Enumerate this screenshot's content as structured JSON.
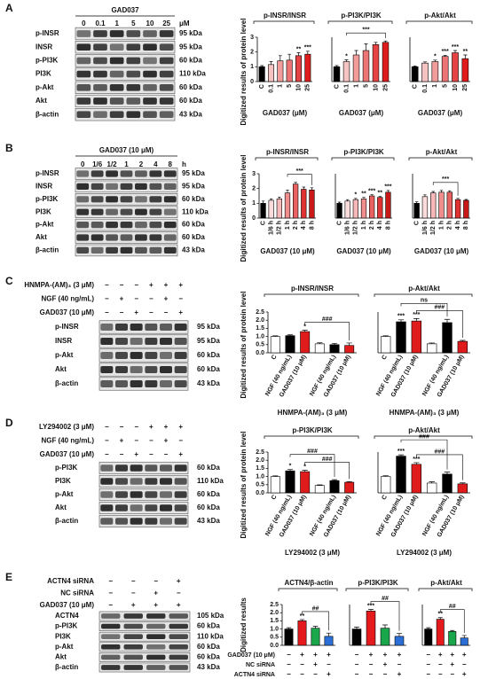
{
  "panels": [
    {
      "letter": "A",
      "header": "GAD037",
      "columns": [
        "0",
        "0.1",
        "1",
        "5",
        "10",
        "25"
      ],
      "unit": "μM",
      "rows": [
        {
          "label": "p-INSR",
          "kda": "95 kDa"
        },
        {
          "label": "INSR",
          "kda": "95 kDa"
        },
        {
          "label": "p-PI3K",
          "kda": "60 kDa"
        },
        {
          "label": "PI3K",
          "kda": "110 kDa"
        },
        {
          "label": "p-Akt",
          "kda": "60 kDa"
        },
        {
          "label": "Akt",
          "kda": "60 kDa"
        },
        {
          "label": "β-actin",
          "kda": "43 kDa"
        }
      ]
    },
    {
      "letter": "B",
      "header": "GAD037 (10 μM)",
      "columns": [
        "0",
        "1/6",
        "1/2",
        "1",
        "2",
        "4",
        "8"
      ],
      "unit": "h",
      "rows": [
        {
          "label": "p-INSR",
          "kda": "95 kDa"
        },
        {
          "label": "INSR",
          "kda": "95 kDa"
        },
        {
          "label": "p-PI3K",
          "kda": "60 kDa"
        },
        {
          "label": "PI3K",
          "kda": "110 kDa"
        },
        {
          "label": "p-Akt",
          "kda": "60 kDa"
        },
        {
          "label": "Akt",
          "kda": "60 kDa"
        },
        {
          "label": "β-actin",
          "kda": "43 kDa"
        }
      ]
    },
    {
      "letter": "C",
      "treatments": [
        {
          "name": "HNMPA-(AM)₃ (3 μM)",
          "signs": [
            "−",
            "−",
            "−",
            "+",
            "+",
            "+"
          ]
        },
        {
          "name": "NGF (40 ng/mL)",
          "signs": [
            "−",
            "+",
            "−",
            "−",
            "+",
            "−"
          ]
        },
        {
          "name": "GAD037 (10 μM)",
          "signs": [
            "−",
            "−",
            "+",
            "−",
            "−",
            "+"
          ]
        }
      ],
      "rows": [
        {
          "label": "p-INSR",
          "kda": "95 kDa"
        },
        {
          "label": "INSR",
          "kda": "95 kDa"
        },
        {
          "label": "p-Akt",
          "kda": "60 kDa"
        },
        {
          "label": "Akt",
          "kda": "60 kDa"
        },
        {
          "label": "β-actin",
          "kda": "43 kDa"
        }
      ]
    },
    {
      "letter": "D",
      "treatments": [
        {
          "name": "LY294002 (3 μM)",
          "signs": [
            "−",
            "−",
            "−",
            "+",
            "+",
            "+"
          ]
        },
        {
          "name": "NGF (40 ng/mL)",
          "signs": [
            "−",
            "+",
            "−",
            "−",
            "+",
            "−"
          ]
        },
        {
          "name": "GAD037 (10 μM)",
          "signs": [
            "−",
            "−",
            "+",
            "−",
            "−",
            "+"
          ]
        }
      ],
      "rows": [
        {
          "label": "p-PI3K",
          "kda": "60 kDa"
        },
        {
          "label": "PI3K",
          "kda": "110 kDa"
        },
        {
          "label": "p-Akt",
          "kda": "60 kDa"
        },
        {
          "label": "Akt",
          "kda": "60 kDa"
        },
        {
          "label": "β-actin",
          "kda": "43 kDa"
        }
      ]
    },
    {
      "letter": "E",
      "treatments": [
        {
          "name": "ACTN4 siRNA",
          "signs": [
            "−",
            "−",
            "−",
            "+"
          ]
        },
        {
          "name": "NC siRNA",
          "signs": [
            "−",
            "−",
            "+",
            "−"
          ]
        },
        {
          "name": "GAD037 (10 μM)",
          "signs": [
            "−",
            "+",
            "+",
            "+"
          ]
        }
      ],
      "rows": [
        {
          "label": "ACTN4",
          "kda": "105 kDa"
        },
        {
          "label": "p-PI3K",
          "kda": "60 kDa"
        },
        {
          "label": "PI3K",
          "kda": "110 kDa"
        },
        {
          "label": "p-Akt",
          "kda": "60 kDa"
        },
        {
          "label": "Akt",
          "kda": "60 kDa"
        },
        {
          "label": "β-actin",
          "kda": "43 kDa"
        }
      ]
    }
  ],
  "e_conditions": [
    {
      "name": "GAD037 (10 μM)",
      "signs": [
        "−",
        "+",
        "+",
        "+"
      ]
    },
    {
      "name": "NC siRNA",
      "signs": [
        "−",
        "−",
        "+",
        "−"
      ]
    },
    {
      "name": "ACTN4 siRNA",
      "signs": [
        "−",
        "−",
        "−",
        "+"
      ]
    }
  ],
  "chart_data": [
    {
      "type": "bar",
      "title": "p-INSR/INSR",
      "ylabel": "Digitized results of protein level",
      "xlabel": "GAD037 (μM)",
      "categories": [
        "C",
        "0.1",
        "1",
        "5",
        "10",
        "25"
      ],
      "values": [
        1.0,
        1.15,
        1.4,
        1.45,
        1.75,
        1.85
      ],
      "errors": [
        0.08,
        0.2,
        0.35,
        0.4,
        0.2,
        0.2
      ],
      "colors": [
        "#000000",
        "#f6c3c3",
        "#f29c9c",
        "#ec7474",
        "#e64444",
        "#e01b1b"
      ],
      "annotations": [
        null,
        null,
        null,
        null,
        "**",
        "***"
      ],
      "ylim": [
        0,
        3
      ],
      "yticks": [
        0,
        1,
        2,
        3
      ]
    },
    {
      "type": "bar",
      "title": "p-PI3K/PI3K",
      "xlabel": "GAD037 (μM)",
      "categories": [
        "C",
        "0.1",
        "1",
        "5",
        "10",
        "25"
      ],
      "values": [
        1.0,
        1.35,
        1.8,
        2.1,
        2.5,
        2.65
      ],
      "errors": [
        0.08,
        0.12,
        0.3,
        0.45,
        0.15,
        0.1
      ],
      "colors": [
        "#000000",
        "#f6c3c3",
        "#f29c9c",
        "#ec7474",
        "#e64444",
        "#e01b1b"
      ],
      "annotations": [
        null,
        "*",
        null,
        null,
        null,
        null
      ],
      "brackets": [
        {
          "from": 1,
          "to": 5,
          "label": "***"
        }
      ],
      "ylim": [
        0,
        3
      ]
    },
    {
      "type": "bar",
      "title": "p-Akt/Akt",
      "xlabel": "GAD037 (μM)",
      "categories": [
        "C",
        "0.1",
        "1",
        "5",
        "10",
        "25"
      ],
      "values": [
        1.0,
        1.25,
        1.35,
        1.7,
        1.95,
        1.55
      ],
      "errors": [
        0.06,
        0.08,
        0.1,
        0.08,
        0.15,
        0.25
      ],
      "colors": [
        "#000000",
        "#f6c3c3",
        "#f29c9c",
        "#ec7474",
        "#e64444",
        "#e01b1b"
      ],
      "annotations": [
        null,
        null,
        "*",
        "***",
        "***",
        "**"
      ],
      "ylim": [
        0,
        3
      ]
    },
    {
      "type": "bar",
      "title": "p-INSR/INSR",
      "ylabel": "Digitized results of protein level",
      "xlabel": "GAD037 (10 μM)",
      "categories": [
        "C",
        "1/6 h",
        "1/2 h",
        "1 h",
        "2 h",
        "4 h",
        "8 h"
      ],
      "values": [
        1.0,
        1.2,
        1.3,
        1.7,
        2.3,
        1.95,
        1.9
      ],
      "errors": [
        0.15,
        0.1,
        0.12,
        0.2,
        0.12,
        0.15,
        0.15
      ],
      "colors": [
        "#000000",
        "#fbdcdc",
        "#f6b8b8",
        "#f08e8e",
        "#e96161",
        "#e03232",
        "#c81818"
      ],
      "annotations": [
        null,
        null,
        null,
        null,
        null,
        null,
        null
      ],
      "brackets": [
        {
          "from": 3,
          "to": 6,
          "label": "***"
        }
      ],
      "ylim": [
        0,
        3
      ],
      "yticks": [
        0,
        1,
        2,
        3
      ]
    },
    {
      "type": "bar",
      "title": "p-PI3K/PI3K",
      "xlabel": "GAD037 (10 μM)",
      "categories": [
        "C",
        "1/6 h",
        "1/2 h",
        "1 h",
        "2 h",
        "4 h",
        "8 h"
      ],
      "values": [
        1.0,
        1.15,
        1.25,
        1.3,
        1.5,
        1.4,
        1.75
      ],
      "errors": [
        0.08,
        0.1,
        0.08,
        0.1,
        0.08,
        0.06,
        0.12
      ],
      "colors": [
        "#000000",
        "#fbdcdc",
        "#f6b8b8",
        "#f08e8e",
        "#e96161",
        "#e03232",
        "#c81818"
      ],
      "annotations": [
        null,
        null,
        "*",
        "**",
        "***",
        "**",
        "***"
      ],
      "ylim": [
        0,
        3
      ]
    },
    {
      "type": "bar",
      "title": "p-Akt/Akt",
      "xlabel": "GAD037 (10 μM)",
      "categories": [
        "C",
        "1/6 h",
        "1/2 h",
        "1 h",
        "2 h",
        "4 h",
        "8 h"
      ],
      "values": [
        1.0,
        1.45,
        1.7,
        1.75,
        1.75,
        1.25,
        1.2
      ],
      "errors": [
        0.1,
        0.12,
        0.1,
        0.12,
        0.1,
        0.08,
        0.06
      ],
      "colors": [
        "#000000",
        "#fbdcdc",
        "#f6b8b8",
        "#f08e8e",
        "#e96161",
        "#e03232",
        "#c81818"
      ],
      "annotations": [
        null,
        null,
        null,
        null,
        null,
        null,
        null
      ],
      "brackets": [
        {
          "from": 2,
          "to": 5,
          "label": "***"
        }
      ],
      "ylim": [
        0,
        3
      ]
    },
    {
      "type": "bar",
      "title": "p-INSR/INSR",
      "ylabel": "Digitized results of protein level",
      "xlabel": "HNMPA-(AM)₃ (3 μM)",
      "categories": [
        "C",
        "NGF (40 ng/mL)",
        "GAD037 (10 μM)",
        null,
        "NGF (40 ng/mL)",
        "GAD037 (10 μM)"
      ],
      "values": [
        1.0,
        1.05,
        1.3,
        0.55,
        0.5,
        0.45
      ],
      "errors": [
        0.04,
        0.05,
        0.08,
        0.06,
        0.08,
        0.15
      ],
      "colors": [
        "#ffffff",
        "#000000",
        "#e01b1b",
        "#ffffff",
        "#000000",
        "#e01b1b"
      ],
      "annotations": [
        null,
        null,
        "*",
        null,
        null,
        null
      ],
      "brackets": [
        {
          "from": 2,
          "to": 5,
          "label": "###"
        }
      ],
      "ylim": [
        0,
        2.5
      ],
      "yticks": [
        {
          "value": 0,
          "label": "0.0"
        },
        {
          "value": 0.5,
          "label": "0.5"
        },
        {
          "value": 1,
          "label": "1.0"
        },
        {
          "value": 1.5,
          "label": "1.5"
        },
        {
          "value": 2,
          "label": "2.0"
        },
        {
          "value": 2.5,
          "label": "2.5"
        }
      ]
    },
    {
      "type": "bar",
      "title": "p-Akt/Akt",
      "xlabel": "HNMPA-(AM)₃ (3 μM)",
      "categories": [
        "C",
        "NGF (40 ng/mL)",
        "GAD037 (10 μM)",
        null,
        "NGF (40 ng/mL)",
        "GAD037 (10 μM)"
      ],
      "values": [
        1.0,
        1.9,
        1.95,
        0.55,
        1.85,
        0.7
      ],
      "errors": [
        0.04,
        0.12,
        0.15,
        0.05,
        0.2,
        0.06
      ],
      "colors": [
        "#ffffff",
        "#000000",
        "#e01b1b",
        "#ffffff",
        "#000000",
        "#e01b1b"
      ],
      "annotations": [
        null,
        "***",
        "***",
        null,
        null,
        null
      ],
      "brackets": [
        {
          "from": 2,
          "to": 5,
          "label": "###"
        },
        {
          "from": 1,
          "to": 4,
          "label": "ns"
        }
      ],
      "ylim": [
        0,
        2.5
      ]
    },
    {
      "type": "bar",
      "title": "p-PI3K/PI3K",
      "ylabel": "Digitized results of protein level",
      "xlabel": "LY294002 (3 μM)",
      "categories": [
        "C",
        "NGF (40 ng/mL)",
        "GAD037 (10 μM)",
        null,
        "NGF (40 ng/mL)",
        "GAD037 (10 μM)"
      ],
      "values": [
        1.0,
        1.35,
        1.3,
        0.45,
        0.75,
        0.65
      ],
      "errors": [
        0.04,
        0.08,
        0.08,
        0.04,
        0.06,
        0.04
      ],
      "colors": [
        "#ffffff",
        "#000000",
        "#e01b1b",
        "#ffffff",
        "#000000",
        "#e01b1b"
      ],
      "annotations": [
        null,
        "*",
        "*",
        null,
        null,
        null
      ],
      "brackets": [
        {
          "from": 2,
          "to": 5,
          "label": "###"
        },
        {
          "from": 1,
          "to": 4,
          "label": "###"
        }
      ],
      "ylim": [
        0,
        2.5
      ],
      "yticks": [
        {
          "value": 0,
          "label": "0.0"
        },
        {
          "value": 0.5,
          "label": "0.5"
        },
        {
          "value": 1,
          "label": "1.0"
        },
        {
          "value": 1.5,
          "label": "1.5"
        },
        {
          "value": 2,
          "label": "2.0"
        },
        {
          "value": 2.5,
          "label": "2.5"
        }
      ]
    },
    {
      "type": "bar",
      "title": "p-Akt/Akt",
      "xlabel": "LY294002 (3 μM)",
      "categories": [
        "C",
        "NGF (40 ng/mL)",
        "GAD037 (10 μM)",
        null,
        "NGF (40 ng/mL)",
        "GAD037 (10 μM)"
      ],
      "values": [
        1.0,
        2.25,
        1.75,
        0.6,
        1.15,
        0.55
      ],
      "errors": [
        0.05,
        0.08,
        0.1,
        0.08,
        0.12,
        0.06
      ],
      "colors": [
        "#ffffff",
        "#000000",
        "#e01b1b",
        "#ffffff",
        "#000000",
        "#e01b1b"
      ],
      "annotations": [
        null,
        "***",
        "***",
        null,
        null,
        null
      ],
      "brackets": [
        {
          "from": 2,
          "to": 5,
          "label": "###"
        },
        {
          "from": 1,
          "to": 4,
          "label": "###"
        }
      ],
      "ylim": [
        0,
        2.5
      ]
    },
    {
      "type": "bar",
      "title": "ACTN4/β-actin",
      "ylabel": "Digitized results",
      "values": [
        1.0,
        1.5,
        1.05,
        0.55
      ],
      "errors": [
        0.08,
        0.08,
        0.12,
        0.2
      ],
      "colors": [
        "#000000",
        "#e41a1c",
        "#1aa64a",
        "#2b6fd6"
      ],
      "annotations": [
        null,
        "**",
        null,
        null
      ],
      "brackets": [
        {
          "from": 1,
          "to": 3,
          "label": "##"
        }
      ],
      "ylim": [
        0,
        2.5
      ],
      "yticks": [
        {
          "value": 0,
          "label": "0.0"
        },
        {
          "value": 0.5,
          "label": "0.5"
        },
        {
          "value": 1,
          "label": "1.0"
        },
        {
          "value": 1.5,
          "label": "1.5"
        },
        {
          "value": 2,
          "label": "2.0"
        },
        {
          "value": 2.5,
          "label": "2.5"
        }
      ]
    },
    {
      "type": "bar",
      "title": "p-PI3K/PI3K",
      "values": [
        1.0,
        2.1,
        1.05,
        0.55
      ],
      "errors": [
        0.12,
        0.1,
        0.2,
        0.18
      ],
      "colors": [
        "#000000",
        "#e41a1c",
        "#1aa64a",
        "#2b6fd6"
      ],
      "annotations": [
        null,
        "***",
        null,
        null
      ],
      "brackets": [
        {
          "from": 1,
          "to": 3,
          "label": "##"
        }
      ],
      "ylim": [
        0,
        2.5
      ]
    },
    {
      "type": "bar",
      "title": "p-Akt/Akt",
      "values": [
        1.0,
        1.6,
        0.85,
        0.45
      ],
      "errors": [
        0.08,
        0.1,
        0.06,
        0.15
      ],
      "colors": [
        "#000000",
        "#e41a1c",
        "#1aa64a",
        "#2b6fd6"
      ],
      "annotations": [
        null,
        "**",
        null,
        null
      ],
      "brackets": [
        {
          "from": 1,
          "to": 3,
          "label": "##"
        }
      ],
      "ylim": [
        0,
        2.5
      ]
    }
  ]
}
